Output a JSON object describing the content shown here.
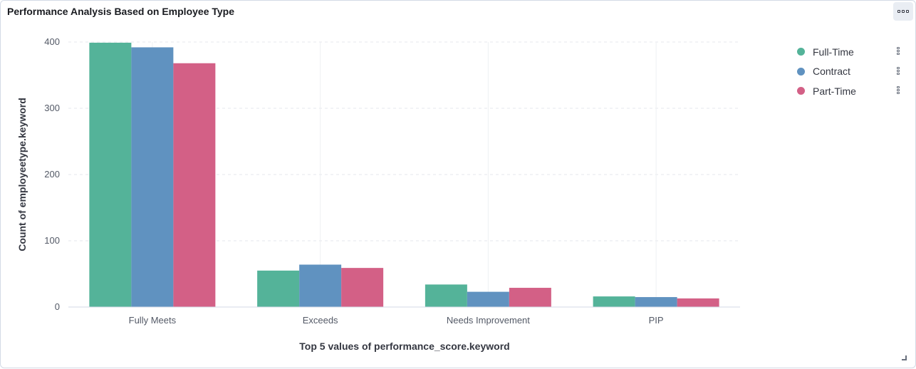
{
  "panel": {
    "title": "Performance Analysis Based on Employee Type",
    "menu_icon": "boxes-horizontal-icon"
  },
  "chart_data": {
    "type": "bar",
    "xlabel": "Top 5 values of performance_score.keyword",
    "ylabel": "Count of employeetype.keyword",
    "categories": [
      "Fully Meets",
      "Exceeds",
      "Needs Improvement",
      "PIP"
    ],
    "series": [
      {
        "name": "Full-Time",
        "color": "#54b399",
        "values": [
          399,
          55,
          34,
          16
        ]
      },
      {
        "name": "Contract",
        "color": "#6092c0",
        "values": [
          392,
          64,
          23,
          15
        ]
      },
      {
        "name": "Part-Time",
        "color": "#d36086",
        "values": [
          368,
          59,
          29,
          13
        ]
      }
    ],
    "ylim": [
      0,
      400
    ],
    "yticks": [
      0,
      100,
      200,
      300,
      400
    ],
    "grid": true,
    "legend_position": "right"
  }
}
